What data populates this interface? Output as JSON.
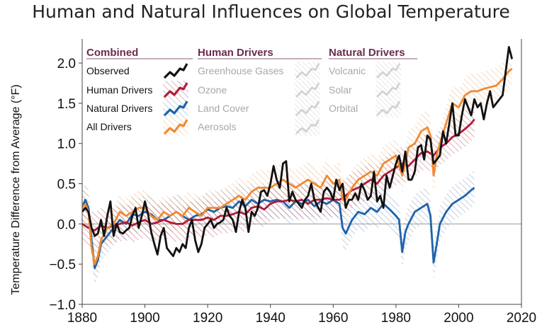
{
  "chart_data": {
    "type": "line",
    "title": "Human and Natural Influences on Global Temperature",
    "xlabel": "",
    "ylabel": "Temperature Difference from Average (°F)",
    "xlim": [
      1880,
      2020
    ],
    "ylim": [
      -1.0,
      2.3
    ],
    "xticks": [
      "1880",
      "1900",
      "1920",
      "1940",
      "1960",
      "1980",
      "2000",
      "2020"
    ],
    "yticks": [
      "−1.0",
      "−0.5",
      "0.0",
      "0.5",
      "1.0",
      "1.5",
      "2.0"
    ],
    "grid": false,
    "legend_position": "top-left",
    "legend": {
      "groups": [
        {
          "heading": "Combined",
          "items": [
            "Observed",
            "Human Drivers",
            "Natural Drivers",
            "All Drivers"
          ]
        },
        {
          "heading": "Human Drivers",
          "items": [
            "Greenhouse Gases",
            "Ozone",
            "Land Cover",
            "Aerosols"
          ]
        },
        {
          "heading": "Natural Drivers",
          "items": [
            "Volcanic",
            "Solar",
            "Orbital"
          ]
        }
      ]
    },
    "series": [
      {
        "name": "Observed",
        "color": "#111111",
        "x": [
          1880,
          1881,
          1882,
          1883,
          1884,
          1885,
          1886,
          1887,
          1888,
          1889,
          1890,
          1891,
          1892,
          1893,
          1894,
          1895,
          1896,
          1897,
          1898,
          1899,
          1900,
          1901,
          1902,
          1903,
          1904,
          1905,
          1906,
          1907,
          1908,
          1909,
          1910,
          1911,
          1912,
          1913,
          1914,
          1915,
          1916,
          1917,
          1918,
          1919,
          1920,
          1921,
          1922,
          1923,
          1924,
          1925,
          1926,
          1927,
          1928,
          1929,
          1930,
          1931,
          1932,
          1933,
          1934,
          1935,
          1936,
          1937,
          1938,
          1939,
          1940,
          1941,
          1942,
          1943,
          1944,
          1945,
          1946,
          1947,
          1948,
          1949,
          1950,
          1951,
          1952,
          1953,
          1954,
          1955,
          1956,
          1957,
          1958,
          1959,
          1960,
          1961,
          1962,
          1963,
          1964,
          1965,
          1966,
          1967,
          1968,
          1969,
          1970,
          1971,
          1972,
          1973,
          1974,
          1975,
          1976,
          1977,
          1978,
          1979,
          1980,
          1981,
          1982,
          1983,
          1984,
          1985,
          1986,
          1987,
          1988,
          1989,
          1990,
          1991,
          1992,
          1993,
          1994,
          1995,
          1996,
          1997,
          1998,
          1999,
          2000,
          2001,
          2002,
          2003,
          2004,
          2005,
          2006,
          2007,
          2008,
          2009,
          2010,
          2011,
          2012,
          2013,
          2014,
          2015,
          2016,
          2017
        ],
        "y": [
          0.15,
          0.2,
          0.15,
          -0.05,
          -0.15,
          -0.12,
          0.05,
          -0.15,
          0.1,
          0.28,
          -0.15,
          0.0,
          -0.1,
          -0.12,
          -0.08,
          -0.05,
          0.1,
          0.2,
          -0.05,
          0.1,
          0.28,
          0.12,
          -0.1,
          -0.25,
          -0.38,
          -0.15,
          -0.05,
          -0.3,
          -0.35,
          -0.4,
          -0.3,
          -0.35,
          -0.25,
          -0.3,
          -0.05,
          0.05,
          -0.2,
          -0.35,
          -0.25,
          -0.05,
          0.0,
          0.05,
          -0.05,
          0.0,
          0.02,
          0.05,
          0.2,
          0.1,
          0.05,
          -0.1,
          0.15,
          0.3,
          0.2,
          -0.1,
          0.15,
          0.1,
          0.2,
          0.4,
          0.42,
          0.35,
          0.5,
          0.72,
          0.55,
          0.45,
          0.75,
          0.78,
          0.28,
          0.4,
          0.3,
          0.25,
          0.2,
          0.3,
          0.35,
          0.5,
          0.3,
          0.22,
          0.15,
          0.4,
          0.45,
          0.4,
          0.3,
          0.55,
          0.42,
          0.5,
          0.2,
          0.3,
          0.3,
          0.38,
          0.3,
          0.5,
          0.42,
          0.3,
          0.35,
          0.65,
          0.28,
          0.35,
          0.2,
          0.6,
          0.45,
          0.6,
          0.75,
          0.85,
          0.65,
          0.9,
          0.55,
          0.55,
          0.65,
          0.95,
          0.98,
          0.8,
          1.1,
          1.05,
          0.75,
          0.8,
          0.85,
          1.15,
          1.0,
          1.25,
          1.5,
          1.1,
          1.1,
          1.35,
          1.55,
          1.45,
          1.35,
          1.55,
          1.45,
          1.5,
          1.3,
          1.5,
          1.65,
          1.45,
          1.5,
          1.55,
          1.6,
          1.9,
          2.2,
          2.05
        ]
      },
      {
        "name": "Human Drivers",
        "color": "#b01c3c",
        "x": [
          1880,
          1882,
          1884,
          1886,
          1888,
          1890,
          1892,
          1894,
          1896,
          1898,
          1900,
          1902,
          1904,
          1906,
          1908,
          1910,
          1912,
          1914,
          1916,
          1918,
          1920,
          1922,
          1924,
          1926,
          1928,
          1930,
          1932,
          1934,
          1936,
          1938,
          1940,
          1942,
          1944,
          1946,
          1948,
          1950,
          1952,
          1954,
          1956,
          1958,
          1960,
          1962,
          1964,
          1966,
          1968,
          1970,
          1972,
          1974,
          1976,
          1978,
          1980,
          1982,
          1984,
          1986,
          1988,
          1990,
          1992,
          1994,
          1996,
          1998,
          2000,
          2002,
          2004,
          2005
        ],
        "y": [
          0.0,
          -0.05,
          -0.08,
          -0.02,
          -0.05,
          -0.02,
          0.0,
          0.02,
          -0.02,
          0.02,
          0.05,
          0.0,
          0.02,
          0.05,
          0.02,
          0.0,
          0.0,
          0.05,
          0.05,
          0.05,
          0.08,
          0.05,
          0.1,
          0.1,
          0.12,
          0.15,
          0.12,
          0.2,
          0.22,
          0.18,
          0.25,
          0.28,
          0.28,
          0.3,
          0.28,
          0.3,
          0.25,
          0.3,
          0.3,
          0.32,
          0.3,
          0.3,
          0.35,
          0.42,
          0.45,
          0.5,
          0.55,
          0.5,
          0.6,
          0.65,
          0.7,
          0.75,
          0.72,
          0.8,
          0.88,
          0.9,
          0.85,
          0.95,
          1.0,
          1.08,
          1.12,
          1.18,
          1.25,
          1.3
        ]
      },
      {
        "name": "Natural Drivers",
        "color": "#1f63aa",
        "x": [
          1880,
          1881,
          1882,
          1883,
          1884,
          1885,
          1886,
          1888,
          1890,
          1892,
          1894,
          1896,
          1898,
          1900,
          1902,
          1904,
          1906,
          1908,
          1910,
          1912,
          1914,
          1916,
          1918,
          1920,
          1922,
          1924,
          1926,
          1928,
          1930,
          1932,
          1934,
          1936,
          1938,
          1940,
          1942,
          1944,
          1946,
          1948,
          1950,
          1952,
          1954,
          1956,
          1958,
          1960,
          1962,
          1963,
          1964,
          1966,
          1968,
          1970,
          1972,
          1974,
          1976,
          1978,
          1980,
          1981,
          1982,
          1983,
          1984,
          1986,
          1988,
          1990,
          1991,
          1992,
          1993,
          1994,
          1996,
          1998,
          2000,
          2002,
          2004,
          2005
        ],
        "y": [
          0.2,
          0.3,
          0.2,
          -0.2,
          -0.55,
          -0.45,
          -0.25,
          -0.15,
          -0.05,
          0.05,
          0.0,
          0.12,
          0.1,
          0.15,
          0.12,
          0.05,
          0.05,
          0.1,
          0.15,
          0.1,
          0.05,
          0.1,
          0.12,
          0.18,
          0.15,
          0.2,
          0.22,
          0.2,
          0.28,
          0.22,
          0.3,
          0.25,
          0.3,
          0.28,
          0.3,
          0.28,
          0.2,
          0.28,
          0.25,
          0.3,
          0.22,
          0.28,
          0.25,
          0.3,
          0.25,
          -0.05,
          -0.12,
          0.05,
          0.15,
          0.12,
          0.2,
          0.15,
          0.25,
          0.18,
          0.1,
          0.05,
          -0.35,
          -0.1,
          0.0,
          0.15,
          0.2,
          0.25,
          0.1,
          -0.48,
          -0.25,
          0.0,
          0.15,
          0.25,
          0.3,
          0.35,
          0.42,
          0.45
        ]
      },
      {
        "name": "All Drivers",
        "color": "#f08a32",
        "x": [
          1880,
          1881,
          1882,
          1883,
          1884,
          1885,
          1886,
          1888,
          1890,
          1892,
          1894,
          1896,
          1898,
          1900,
          1902,
          1904,
          1906,
          1908,
          1910,
          1912,
          1914,
          1916,
          1918,
          1920,
          1922,
          1924,
          1926,
          1928,
          1930,
          1932,
          1934,
          1936,
          1938,
          1940,
          1942,
          1944,
          1946,
          1948,
          1950,
          1952,
          1954,
          1956,
          1958,
          1960,
          1962,
          1963,
          1964,
          1966,
          1968,
          1970,
          1972,
          1974,
          1976,
          1978,
          1980,
          1982,
          1983,
          1984,
          1986,
          1988,
          1990,
          1991,
          1992,
          1993,
          1994,
          1996,
          1998,
          2000,
          2002,
          2004,
          2006,
          2008,
          2010,
          2012,
          2014,
          2016,
          2017
        ],
        "y": [
          0.2,
          0.25,
          0.15,
          -0.3,
          -0.5,
          -0.4,
          -0.2,
          -0.05,
          0.0,
          0.15,
          0.1,
          0.15,
          0.2,
          0.2,
          0.1,
          0.05,
          0.15,
          0.1,
          0.15,
          0.1,
          0.2,
          0.15,
          0.1,
          0.2,
          0.2,
          0.2,
          0.25,
          0.3,
          0.35,
          0.3,
          0.4,
          0.45,
          0.45,
          0.45,
          0.5,
          0.55,
          0.5,
          0.45,
          0.5,
          0.55,
          0.5,
          0.45,
          0.6,
          0.5,
          0.55,
          0.3,
          0.3,
          0.45,
          0.55,
          0.6,
          0.65,
          0.6,
          0.75,
          0.8,
          0.85,
          0.6,
          0.75,
          0.95,
          1.0,
          1.15,
          1.2,
          1.1,
          0.6,
          0.85,
          1.0,
          1.25,
          1.5,
          1.45,
          1.6,
          1.65,
          1.65,
          1.68,
          1.7,
          1.72,
          1.8,
          1.9,
          1.93
        ]
      }
    ]
  }
}
